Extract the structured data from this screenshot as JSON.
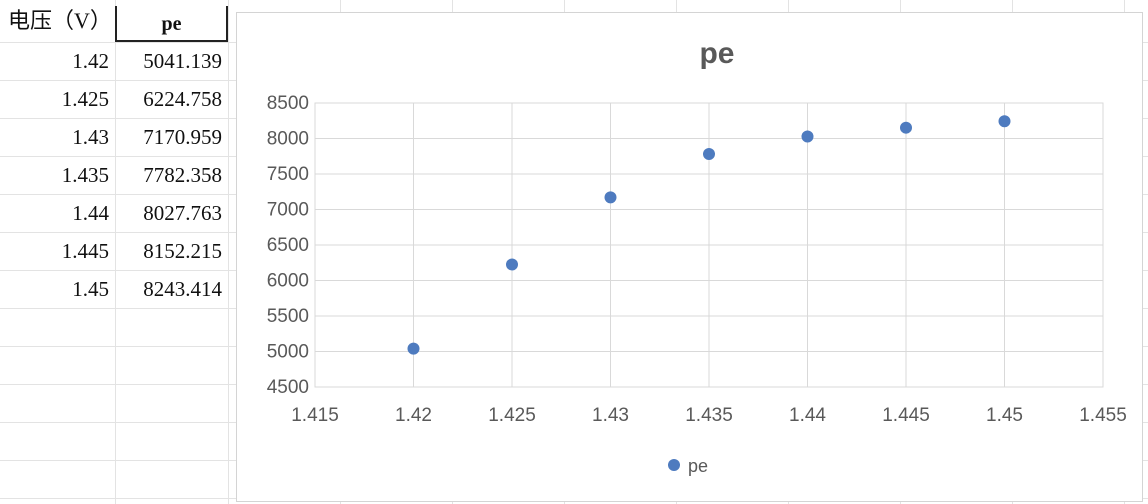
{
  "table": {
    "header": [
      "电压（V）",
      "pe"
    ],
    "rows": [
      [
        "1.42",
        "5041.139"
      ],
      [
        "1.425",
        "6224.758"
      ],
      [
        "1.43",
        "7170.959"
      ],
      [
        "1.435",
        "7782.358"
      ],
      [
        "1.44",
        "8027.763"
      ],
      [
        "1.445",
        "8152.215"
      ],
      [
        "1.45",
        "8243.414"
      ]
    ]
  },
  "chart_data": {
    "type": "scatter",
    "title": "pe",
    "xlabel": "",
    "ylabel": "",
    "series": [
      {
        "name": "pe",
        "color": "#4e7bbf",
        "x": [
          1.42,
          1.425,
          1.43,
          1.435,
          1.44,
          1.445,
          1.45
        ],
        "y": [
          5041.139,
          6224.758,
          7170.959,
          7782.358,
          8027.763,
          8152.215,
          8243.414
        ]
      }
    ],
    "xlim": [
      1.415,
      1.455
    ],
    "ylim": [
      4500,
      8500
    ],
    "x_ticks": [
      "1.415",
      "1.42",
      "1.425",
      "1.43",
      "1.435",
      "1.44",
      "1.445",
      "1.45",
      "1.455"
    ],
    "y_ticks": [
      "4500",
      "5000",
      "5500",
      "6000",
      "6500",
      "7000",
      "7500",
      "8000",
      "8500"
    ],
    "grid": true,
    "legend_position": "bottom"
  }
}
